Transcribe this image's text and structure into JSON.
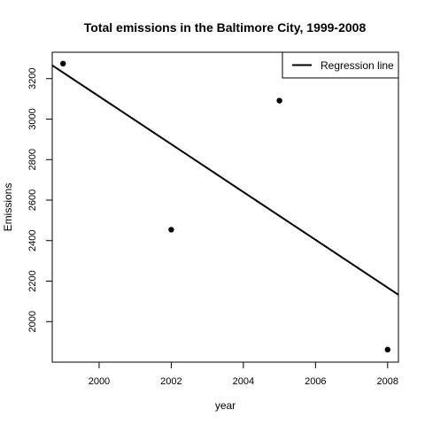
{
  "chart_data": {
    "type": "scatter",
    "title": "Total emissions in the Baltimore City, 1999-2008",
    "xlabel": "year",
    "ylabel": "Emissions",
    "xlim": [
      1998.7,
      2008.3
    ],
    "ylim": [
      1800,
      3330
    ],
    "x_ticks": [
      2000,
      2002,
      2004,
      2006,
      2008
    ],
    "y_ticks": [
      2000,
      2200,
      2400,
      2600,
      2800,
      3000,
      3200
    ],
    "points": [
      {
        "x": 1999,
        "y": 3274
      },
      {
        "x": 2002,
        "y": 2454
      },
      {
        "x": 2005,
        "y": 3091
      },
      {
        "x": 2008,
        "y": 1862
      }
    ],
    "regression_line": {
      "intercept_at_1999": 3230,
      "slope_per_year": -118
    },
    "legend": {
      "entries": [
        "Regression line"
      ],
      "position": "top-right"
    },
    "grid": false
  }
}
